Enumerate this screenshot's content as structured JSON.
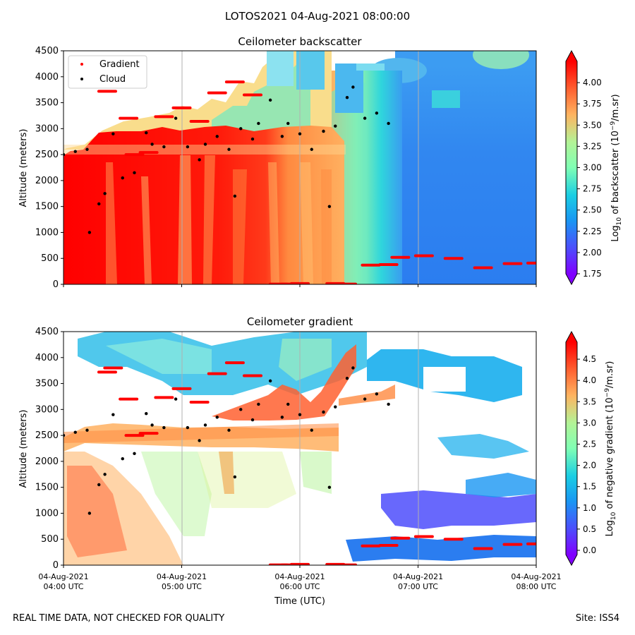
{
  "suptitle": "LOTOS2021 04-Aug-2021 08:00:00",
  "footer": {
    "left": "REAL TIME DATA, NOT CHECKED FOR QUALITY",
    "right": "Site: ISS4"
  },
  "colors": {
    "gradient_marker": "#ff0000",
    "cloud_marker": "#000000",
    "colormap": "rainbow"
  },
  "chart_data": [
    {
      "type": "heatmap",
      "title": "Ceilometer backscatter",
      "ylabel": "Altitude (meters)",
      "xlabel": "",
      "ylim": [
        0,
        4500
      ],
      "y_ticks": [
        "0",
        "500",
        "1000",
        "1500",
        "2000",
        "2500",
        "3000",
        "3500",
        "4000",
        "4500"
      ],
      "x_ticks": [
        "04:00",
        "05:00",
        "06:00",
        "07:00",
        "08:00"
      ],
      "x_tick_labels_shown": false,
      "grid": "vertical",
      "legend": {
        "placement": "top-left",
        "entries": [
          "Gradient",
          "Cloud"
        ]
      },
      "colorbar": {
        "label_prefix": "Log",
        "label_sub": "10",
        "label_mid": " of backscatter (10",
        "label_sup": "−9",
        "label_suffix": "/m.sr)",
        "vmin": 1.75,
        "vmax": 4.25,
        "ticks": [
          "1.75",
          "2.00",
          "2.25",
          "2.50",
          "2.75",
          "3.00",
          "3.25",
          "3.50",
          "3.75",
          "4.00"
        ]
      },
      "series": [
        {
          "name": "Gradient",
          "points": [
            [
              4.37,
              3720
            ],
            [
              4.42,
              3800
            ],
            [
              4.55,
              3200
            ],
            [
              4.6,
              2500
            ],
            [
              4.72,
              2540
            ],
            [
              4.85,
              3230
            ],
            [
              5.0,
              3400
            ],
            [
              5.15,
              3140
            ],
            [
              5.3,
              3690
            ],
            [
              5.45,
              3900
            ],
            [
              5.6,
              3650
            ],
            [
              5.82,
              5
            ],
            [
              5.92,
              5
            ],
            [
              6.0,
              15
            ],
            [
              6.3,
              15
            ],
            [
              6.4,
              5
            ],
            [
              6.6,
              370
            ],
            [
              6.75,
              380
            ],
            [
              6.85,
              520
            ],
            [
              7.05,
              550
            ],
            [
              7.3,
              500
            ],
            [
              7.55,
              320
            ],
            [
              7.8,
              400
            ],
            [
              8.0,
              410
            ]
          ]
        },
        {
          "name": "Cloud",
          "points": [
            [
              4.0,
              2500
            ],
            [
              4.1,
              2560
            ],
            [
              4.2,
              2600
            ],
            [
              4.22,
              1000
            ],
            [
              4.3,
              1550
            ],
            [
              4.35,
              1750
            ],
            [
              4.42,
              2900
            ],
            [
              4.5,
              2050
            ],
            [
              4.6,
              2150
            ],
            [
              4.7,
              2920
            ],
            [
              4.75,
              2700
            ],
            [
              4.85,
              2650
            ],
            [
              4.95,
              3200
            ],
            [
              5.05,
              2650
            ],
            [
              5.15,
              2400
            ],
            [
              5.2,
              2700
            ],
            [
              5.3,
              2850
            ],
            [
              5.4,
              2600
            ],
            [
              5.45,
              1700
            ],
            [
              5.5,
              3000
            ],
            [
              5.6,
              2800
            ],
            [
              5.65,
              3100
            ],
            [
              5.75,
              3550
            ],
            [
              5.85,
              2850
            ],
            [
              5.9,
              3100
            ],
            [
              6.0,
              2900
            ],
            [
              6.1,
              2600
            ],
            [
              6.2,
              2950
            ],
            [
              6.25,
              1500
            ],
            [
              6.3,
              3050
            ],
            [
              6.4,
              3600
            ],
            [
              6.45,
              3800
            ],
            [
              6.55,
              3200
            ],
            [
              6.65,
              3300
            ],
            [
              6.75,
              3100
            ]
          ]
        }
      ]
    },
    {
      "type": "heatmap",
      "title": "Ceilometer gradient",
      "ylabel": "Altitude (meters)",
      "xlabel": "Time (UTC)",
      "ylim": [
        0,
        4500
      ],
      "y_ticks": [
        "0",
        "500",
        "1000",
        "1500",
        "2000",
        "2500",
        "3000",
        "3500",
        "4000",
        "4500"
      ],
      "x_ticks": [
        {
          "line1": "04-Aug-2021",
          "line2": "04:00 UTC"
        },
        {
          "line1": "04-Aug-2021",
          "line2": "05:00 UTC"
        },
        {
          "line1": "04-Aug-2021",
          "line2": "06:00 UTC"
        },
        {
          "line1": "04-Aug-2021",
          "line2": "07:00 UTC"
        },
        {
          "line1": "04-Aug-2021",
          "line2": "08:00 UTC"
        }
      ],
      "grid": "vertical",
      "colorbar": {
        "label_prefix": "Log",
        "label_sub": "10",
        "label_mid": " of negative gradient (10",
        "label_sup": "−9",
        "label_suffix": "/m.sr)",
        "vmin": -0.1,
        "vmax": 4.9,
        "ticks": [
          "0.0",
          "0.5",
          "1.0",
          "1.5",
          "2.0",
          "2.5",
          "3.0",
          "3.5",
          "4.0",
          "4.5"
        ]
      },
      "series": [
        {
          "name": "Gradient",
          "points": [
            [
              4.37,
              3720
            ],
            [
              4.42,
              3800
            ],
            [
              4.55,
              3200
            ],
            [
              4.6,
              2500
            ],
            [
              4.72,
              2540
            ],
            [
              4.85,
              3230
            ],
            [
              5.0,
              3400
            ],
            [
              5.15,
              3140
            ],
            [
              5.3,
              3690
            ],
            [
              5.45,
              3900
            ],
            [
              5.6,
              3650
            ],
            [
              5.82,
              5
            ],
            [
              5.92,
              5
            ],
            [
              6.0,
              15
            ],
            [
              6.3,
              15
            ],
            [
              6.4,
              5
            ],
            [
              6.6,
              370
            ],
            [
              6.75,
              380
            ],
            [
              6.85,
              520
            ],
            [
              7.05,
              550
            ],
            [
              7.3,
              500
            ],
            [
              7.55,
              320
            ],
            [
              7.8,
              400
            ],
            [
              8.0,
              410
            ]
          ]
        },
        {
          "name": "Cloud",
          "points": [
            [
              4.0,
              2500
            ],
            [
              4.1,
              2560
            ],
            [
              4.2,
              2600
            ],
            [
              4.22,
              1000
            ],
            [
              4.3,
              1550
            ],
            [
              4.35,
              1750
            ],
            [
              4.42,
              2900
            ],
            [
              4.5,
              2050
            ],
            [
              4.6,
              2150
            ],
            [
              4.7,
              2920
            ],
            [
              4.75,
              2700
            ],
            [
              4.85,
              2650
            ],
            [
              4.95,
              3200
            ],
            [
              5.05,
              2650
            ],
            [
              5.15,
              2400
            ],
            [
              5.2,
              2700
            ],
            [
              5.3,
              2850
            ],
            [
              5.4,
              2600
            ],
            [
              5.45,
              1700
            ],
            [
              5.5,
              3000
            ],
            [
              5.6,
              2800
            ],
            [
              5.65,
              3100
            ],
            [
              5.75,
              3550
            ],
            [
              5.85,
              2850
            ],
            [
              5.9,
              3100
            ],
            [
              6.0,
              2900
            ],
            [
              6.1,
              2600
            ],
            [
              6.2,
              2950
            ],
            [
              6.25,
              1500
            ],
            [
              6.3,
              3050
            ],
            [
              6.4,
              3600
            ],
            [
              6.45,
              3800
            ],
            [
              6.55,
              3200
            ],
            [
              6.65,
              3300
            ],
            [
              6.75,
              3100
            ]
          ]
        }
      ]
    }
  ]
}
